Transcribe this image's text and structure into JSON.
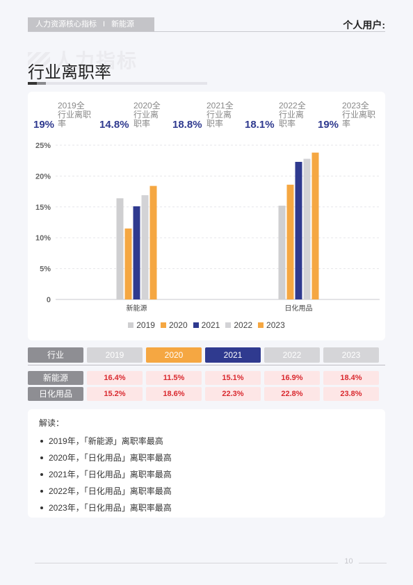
{
  "header": {
    "report_name": "人力资源核心指标",
    "separator": "I",
    "industry": "新能源",
    "user_label": "个人用户:"
  },
  "watermark": "人力指标",
  "page_title": "行业离职率",
  "stats": [
    {
      "label": "2019全行业离职率",
      "value": "19%"
    },
    {
      "label": "2020全行业离职率",
      "value": "14.8%"
    },
    {
      "label": "2021全行业离职率",
      "value": "18.8%"
    },
    {
      "label": "2022全行业离职率",
      "value": "18.1%"
    },
    {
      "label": "2023全行业离职率",
      "value": "19%"
    }
  ],
  "chart_data": {
    "type": "bar",
    "categories": [
      "新能源",
      "日化用品"
    ],
    "series": [
      {
        "name": "2019",
        "values": [
          16.4,
          15.2
        ],
        "color": "#cfcfd1"
      },
      {
        "name": "2020",
        "values": [
          11.5,
          18.6
        ],
        "color": "#f5a742"
      },
      {
        "name": "2021",
        "values": [
          15.1,
          22.3
        ],
        "color": "#2f3a8f"
      },
      {
        "name": "2022",
        "values": [
          16.9,
          22.8
        ],
        "color": "#d3d3d6"
      },
      {
        "name": "2023",
        "values": [
          18.4,
          23.8
        ],
        "color": "#f5a742"
      }
    ],
    "y_ticks": [
      "0",
      "5%",
      "10%",
      "15%",
      "20%",
      "25%"
    ],
    "ylim": [
      0,
      25
    ],
    "grid": true,
    "legend_position": "bottom"
  },
  "table": {
    "header_label": "行业",
    "years": [
      {
        "label": "2019",
        "bg": "#d5d5d8",
        "fg": "#ffffff"
      },
      {
        "label": "2020",
        "bg": "#f5a742",
        "fg": "#ffffff"
      },
      {
        "label": "2021",
        "bg": "#2f3a8f",
        "fg": "#ffffff"
      },
      {
        "label": "2022",
        "bg": "#d5d5d8",
        "fg": "#ffffff"
      },
      {
        "label": "2023",
        "bg": "#d5d5d8",
        "fg": "#ffffff"
      }
    ],
    "rows": [
      {
        "name": "新能源",
        "values": [
          "16.4%",
          "11.5%",
          "15.1%",
          "16.9%",
          "18.4%"
        ]
      },
      {
        "name": "日化用品",
        "values": [
          "15.2%",
          "18.6%",
          "22.3%",
          "22.8%",
          "23.8%"
        ]
      }
    ]
  },
  "notes": {
    "title": "解读：",
    "items": [
      "2019年，「新能源」离职率最高",
      "2020年，「日化用品」离职率最高",
      "2021年，「日化用品」离职率最高",
      "2022年，「日化用品」离职率最高",
      "2023年，「日化用品」离职率最高"
    ]
  },
  "footer": {
    "page_number": "10"
  },
  "colors": {
    "accent_blue": "#2f3a8f",
    "accent_orange": "#f5a742",
    "gray": "#cfcfd1",
    "alert_red": "#d9292f"
  }
}
